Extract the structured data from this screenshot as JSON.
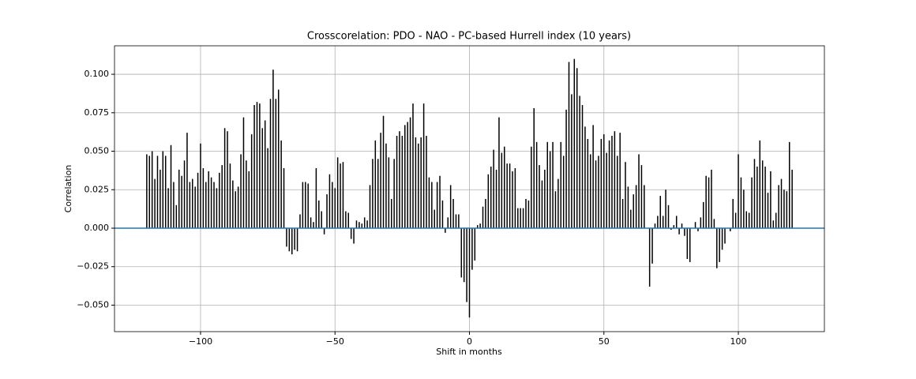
{
  "chart_data": {
    "type": "stem",
    "title": "Crosscorelation: PDO - NAO - PC-based Hurrell index (10 years)",
    "x_label": "Shift in months",
    "y_label": "Correlation",
    "color": "#000000",
    "grid": true,
    "hline": {
      "y": 0,
      "color": "#1f77b4"
    },
    "xlim": [
      -132,
      132
    ],
    "ylim": [
      -0.0672,
      0.1185
    ],
    "xticks": [
      {
        "value": -100,
        "label": "−100"
      },
      {
        "value": -50,
        "label": "−50"
      },
      0,
      50,
      100
    ],
    "yticks": [
      {
        "value": -0.05,
        "label": "−0.050"
      },
      {
        "value": -0.025,
        "label": "−0.025"
      },
      {
        "value": 0,
        "label": "0.000"
      },
      {
        "value": 0.025,
        "label": "0.025"
      },
      {
        "value": 0.05,
        "label": "0.050"
      },
      {
        "value": 0.075,
        "label": "0.075"
      },
      {
        "value": 0.1,
        "label": "0.100"
      }
    ],
    "x": [
      -120,
      -119,
      -118,
      -117,
      -116,
      -115,
      -114,
      -113,
      -112,
      -111,
      -110,
      -109,
      -108,
      -107,
      -106,
      -105,
      -104,
      -103,
      -102,
      -101,
      -100,
      -99,
      -98,
      -97,
      -96,
      -95,
      -94,
      -93,
      -92,
      -91,
      -90,
      -89,
      -88,
      -87,
      -86,
      -85,
      -84,
      -83,
      -82,
      -81,
      -80,
      -79,
      -78,
      -77,
      -76,
      -75,
      -74,
      -73,
      -72,
      -71,
      -70,
      -69,
      -68,
      -67,
      -66,
      -65,
      -64,
      -63,
      -62,
      -61,
      -60,
      -59,
      -58,
      -57,
      -56,
      -55,
      -54,
      -53,
      -52,
      -51,
      -50,
      -49,
      -48,
      -47,
      -46,
      -45,
      -44,
      -43,
      -42,
      -41,
      -40,
      -39,
      -38,
      -37,
      -36,
      -35,
      -34,
      -33,
      -32,
      -31,
      -30,
      -29,
      -28,
      -27,
      -26,
      -25,
      -24,
      -23,
      -22,
      -21,
      -20,
      -19,
      -18,
      -17,
      -16,
      -15,
      -14,
      -13,
      -12,
      -11,
      -10,
      -9,
      -8,
      -7,
      -6,
      -5,
      -4,
      -3,
      -2,
      -1,
      0,
      1,
      2,
      3,
      4,
      5,
      6,
      7,
      8,
      9,
      10,
      11,
      12,
      13,
      14,
      15,
      16,
      17,
      18,
      19,
      20,
      21,
      22,
      23,
      24,
      25,
      26,
      27,
      28,
      29,
      30,
      31,
      32,
      33,
      34,
      35,
      36,
      37,
      38,
      39,
      40,
      41,
      42,
      43,
      44,
      45,
      46,
      47,
      48,
      49,
      50,
      51,
      52,
      53,
      54,
      55,
      56,
      57,
      58,
      59,
      60,
      61,
      62,
      63,
      64,
      65,
      66,
      67,
      68,
      69,
      70,
      71,
      72,
      73,
      74,
      75,
      76,
      77,
      78,
      79,
      80,
      81,
      82,
      83,
      84,
      85,
      86,
      87,
      88,
      89,
      90,
      91,
      92,
      93,
      94,
      95,
      96,
      97,
      98,
      99,
      100,
      101,
      102,
      103,
      104,
      105,
      106,
      107,
      108,
      109,
      110,
      111,
      112,
      113,
      114,
      115,
      116,
      117,
      118,
      119,
      120
    ],
    "values": [
      0.048,
      0.047,
      0.05,
      0.032,
      0.047,
      0.038,
      0.05,
      0.047,
      0.026,
      0.054,
      0.03,
      0.015,
      0.038,
      0.034,
      0.044,
      0.062,
      0.03,
      0.032,
      0.027,
      0.036,
      0.055,
      0.039,
      0.03,
      0.037,
      0.033,
      0.03,
      0.026,
      0.036,
      0.041,
      0.065,
      0.063,
      0.042,
      0.031,
      0.024,
      0.027,
      0.048,
      0.072,
      0.044,
      0.037,
      0.061,
      0.08,
      0.082,
      0.081,
      0.065,
      0.07,
      0.052,
      0.084,
      0.103,
      0.084,
      0.09,
      0.057,
      0.039,
      -0.012,
      -0.015,
      -0.017,
      -0.014,
      -0.015,
      0.009,
      0.03,
      0.03,
      0.029,
      0.007,
      0.004,
      0.039,
      0.018,
      0.011,
      -0.004,
      0.022,
      0.035,
      0.03,
      0.026,
      0.046,
      0.042,
      0.043,
      0.011,
      0.01,
      -0.007,
      -0.01,
      0.005,
      0.004,
      0.003,
      0.007,
      0.005,
      0.028,
      0.045,
      0.057,
      0.045,
      0.062,
      0.073,
      0.055,
      0.046,
      0.019,
      0.045,
      0.06,
      0.063,
      0.06,
      0.067,
      0.069,
      0.072,
      0.081,
      0.059,
      0.055,
      0.059,
      0.081,
      0.06,
      0.033,
      0.03,
      0.012,
      0.03,
      0.034,
      0.018,
      -0.003,
      0.007,
      0.028,
      0.019,
      0.009,
      0.009,
      -0.032,
      -0.035,
      -0.048,
      -0.058,
      -0.027,
      -0.021,
      0.002,
      0.003,
      0.014,
      0.019,
      0.035,
      0.04,
      0.051,
      0.038,
      0.072,
      0.049,
      0.053,
      0.042,
      0.042,
      0.037,
      0.039,
      0.013,
      0.013,
      0.013,
      0.019,
      0.018,
      0.053,
      0.078,
      0.056,
      0.041,
      0.031,
      0.038,
      0.056,
      0.05,
      0.056,
      0.024,
      0.032,
      0.056,
      0.047,
      0.077,
      0.108,
      0.087,
      0.11,
      0.104,
      0.086,
      0.08,
      0.066,
      0.058,
      0.048,
      0.067,
      0.044,
      0.047,
      0.058,
      0.061,
      0.049,
      0.057,
      0.06,
      0.063,
      0.047,
      0.062,
      0.019,
      0.043,
      0.027,
      0.012,
      0.022,
      0.028,
      0.048,
      0.041,
      0.028,
      0.0,
      -0.038,
      -0.023,
      0.003,
      0.008,
      0.021,
      0.008,
      0.025,
      0.015,
      -0.001,
      0.002,
      0.008,
      -0.004,
      0.003,
      -0.005,
      -0.02,
      -0.022,
      0.0,
      0.004,
      -0.002,
      0.007,
      0.017,
      0.034,
      0.033,
      0.038,
      0.006,
      -0.026,
      -0.022,
      -0.014,
      -0.01,
      0.0,
      -0.002,
      0.019,
      0.01,
      0.048,
      0.033,
      0.025,
      0.011,
      0.01,
      0.033,
      0.045,
      0.04,
      0.057,
      0.044,
      0.04,
      0.023,
      0.037,
      0.005,
      0.01,
      0.028,
      0.032,
      0.025,
      0.024,
      0.056,
      0.038
    ]
  }
}
